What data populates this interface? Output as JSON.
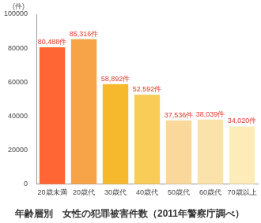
{
  "chart_data": {
    "type": "bar",
    "title": "年齢層別　女性の犯罪被害件数（2011年警察庁調べ）",
    "y_label": "(件)",
    "categories": [
      "20歳未満",
      "20歳代",
      "30歳代",
      "40歳代",
      "50歳代",
      "60歳代",
      "70歳以上"
    ],
    "values": [
      80488,
      85316,
      58892,
      52592,
      37536,
      38039,
      34020
    ],
    "value_labels": [
      "80,488件",
      "85,316件",
      "58,892件",
      "52,592件",
      "37,536件",
      "38,039件",
      "34,020件"
    ],
    "colors": [
      "#ff6633",
      "#f7a347",
      "#f6b92e",
      "#f9cb57",
      "#fad89b",
      "#fbe2aa",
      "#fdecb8"
    ],
    "ylim": [
      0,
      100000
    ],
    "yticks": [
      0,
      20000,
      40000,
      60000,
      80000,
      100000
    ],
    "grid": false,
    "data_labels": true
  }
}
